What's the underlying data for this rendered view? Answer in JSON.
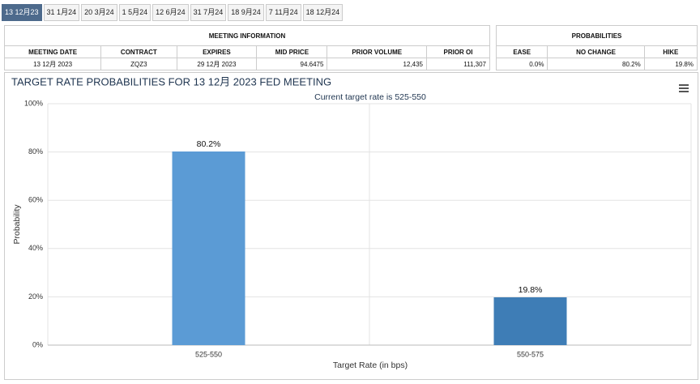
{
  "tabs": [
    "13 12月23",
    "31 1月24",
    "20 3月24",
    "1 5月24",
    "12 6月24",
    "31 7月24",
    "18 9月24",
    "7 11月24",
    "18 12月24"
  ],
  "meeting_info": {
    "title": "MEETING INFORMATION",
    "headers": [
      "MEETING DATE",
      "CONTRACT",
      "EXPIRES",
      "MID PRICE",
      "PRIOR VOLUME",
      "PRIOR OI"
    ],
    "row": [
      "13 12月 2023",
      "ZQZ3",
      "29 12月 2023",
      "94.6475",
      "12,435",
      "111,307"
    ]
  },
  "probabilities": {
    "title": "PROBABILITIES",
    "headers": [
      "EASE",
      "NO CHANGE",
      "HIKE"
    ],
    "row": [
      "0.0%",
      "80.2%",
      "19.8%"
    ]
  },
  "chart_data": {
    "type": "bar",
    "title": "TARGET RATE PROBABILITIES FOR 13 12月 2023 FED MEETING",
    "subtitle": "Current target rate is 525-550",
    "x_label": "Target Rate (in bps)",
    "y_label": "Probability",
    "categories": [
      "525-550",
      "550-575"
    ],
    "values": [
      80.2,
      19.8
    ],
    "value_labels": [
      "80.2%",
      "19.8%"
    ],
    "colors": [
      "#5b9bd5",
      "#3e7db6"
    ],
    "ylim": [
      0,
      100
    ],
    "yticks": [
      {
        "value": 0,
        "label": "0%"
      },
      {
        "value": 20,
        "label": "20%"
      },
      {
        "value": 40,
        "label": "40%"
      },
      {
        "value": 60,
        "label": "60%"
      },
      {
        "value": 80,
        "label": "80%"
      },
      {
        "value": 100,
        "label": "100%"
      }
    ],
    "grid": true
  }
}
